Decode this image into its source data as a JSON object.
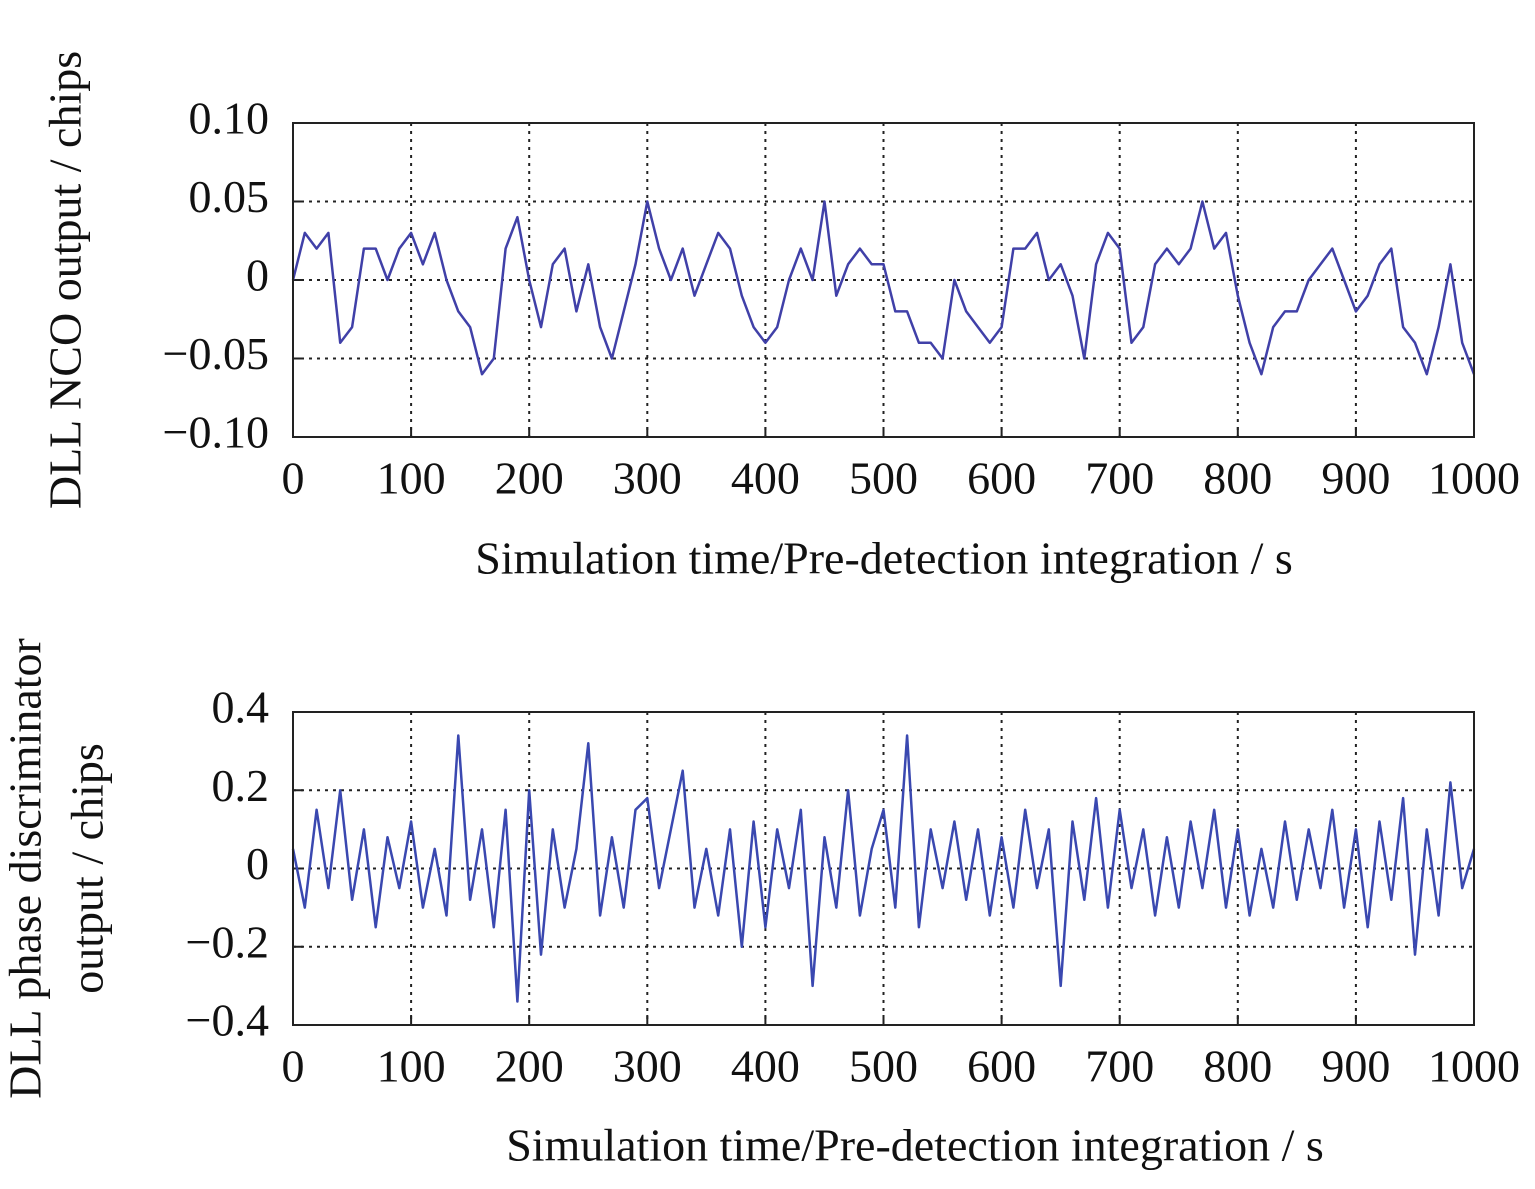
{
  "chart_data": [
    {
      "type": "line",
      "x_label": "Simulation time/Pre-detection integration / s",
      "y_label": [
        "DLL NCO output / chips"
      ],
      "xlim": [
        0,
        1000
      ],
      "xticks": [
        0,
        100,
        200,
        300,
        400,
        500,
        600,
        700,
        800,
        900,
        1000
      ],
      "ylim": [
        -0.1,
        0.1
      ],
      "yticks": [
        {
          "value": 0.1,
          "label": "0.10"
        },
        {
          "value": 0.05,
          "label": "0.05"
        },
        0,
        {
          "value": -0.05,
          "label": "−0.05"
        },
        {
          "value": -0.1,
          "label": "−0.10"
        }
      ],
      "grid": true,
      "x": [
        0,
        10,
        20,
        30,
        40,
        50,
        60,
        70,
        80,
        90,
        100,
        110,
        120,
        130,
        140,
        150,
        160,
        170,
        180,
        190,
        200,
        210,
        220,
        230,
        240,
        250,
        260,
        270,
        280,
        290,
        300,
        310,
        320,
        330,
        340,
        350,
        360,
        370,
        380,
        390,
        400,
        410,
        420,
        430,
        440,
        450,
        460,
        470,
        480,
        490,
        500,
        510,
        520,
        530,
        540,
        550,
        560,
        570,
        580,
        590,
        600,
        610,
        620,
        630,
        640,
        650,
        660,
        670,
        680,
        690,
        700,
        710,
        720,
        730,
        740,
        750,
        760,
        770,
        780,
        790,
        800,
        810,
        820,
        830,
        840,
        850,
        860,
        870,
        880,
        890,
        900,
        910,
        920,
        930,
        940,
        950,
        960,
        970,
        980,
        990,
        1000
      ],
      "series": [
        {
          "color": "#4040a8",
          "values": [
            0,
            0.03,
            0.02,
            0.03,
            -0.04,
            -0.03,
            0.02,
            0.02,
            0.0,
            0.02,
            0.03,
            0.01,
            0.03,
            0.0,
            -0.02,
            -0.03,
            -0.06,
            -0.05,
            0.02,
            0.04,
            0.0,
            -0.03,
            0.01,
            0.02,
            -0.02,
            0.01,
            -0.03,
            -0.05,
            -0.02,
            0.01,
            0.05,
            0.02,
            0.0,
            0.02,
            -0.01,
            0.01,
            0.03,
            0.02,
            -0.01,
            -0.03,
            -0.04,
            -0.03,
            0.0,
            0.02,
            0.0,
            0.05,
            -0.01,
            0.01,
            0.02,
            0.01,
            0.01,
            -0.02,
            -0.02,
            -0.04,
            -0.04,
            -0.05,
            0.0,
            -0.02,
            -0.03,
            -0.04,
            -0.03,
            0.02,
            0.02,
            0.03,
            0.0,
            0.01,
            -0.01,
            -0.05,
            0.01,
            0.03,
            0.02,
            -0.04,
            -0.03,
            0.01,
            0.02,
            0.01,
            0.02,
            0.05,
            0.02,
            0.03,
            -0.01,
            -0.04,
            -0.06,
            -0.03,
            -0.02,
            -0.02,
            0.0,
            0.01,
            0.02,
            0.0,
            -0.02,
            -0.01,
            0.01,
            0.02,
            -0.03,
            -0.04,
            -0.06,
            -0.03,
            0.01,
            -0.04,
            -0.06
          ]
        }
      ]
    },
    {
      "type": "line",
      "x_label": "Simulation time/Pre-detection integration / s",
      "y_label": [
        "DLL phase discriminator",
        "output / chips"
      ],
      "xlim": [
        0,
        1000
      ],
      "xticks": [
        0,
        100,
        200,
        300,
        400,
        500,
        600,
        700,
        800,
        900,
        1000
      ],
      "ylim": [
        -0.4,
        0.4
      ],
      "yticks": [
        0.4,
        0.2,
        0,
        {
          "value": -0.2,
          "label": "−0.2"
        },
        {
          "value": -0.4,
          "label": "−0.4"
        }
      ],
      "grid": true,
      "x": [
        0,
        10,
        20,
        30,
        40,
        50,
        60,
        70,
        80,
        90,
        100,
        110,
        120,
        130,
        140,
        150,
        160,
        170,
        180,
        190,
        200,
        210,
        220,
        230,
        240,
        250,
        260,
        270,
        280,
        290,
        300,
        310,
        320,
        330,
        340,
        350,
        360,
        370,
        380,
        390,
        400,
        410,
        420,
        430,
        440,
        450,
        460,
        470,
        480,
        490,
        500,
        510,
        520,
        530,
        540,
        550,
        560,
        570,
        580,
        590,
        600,
        610,
        620,
        630,
        640,
        650,
        660,
        670,
        680,
        690,
        700,
        710,
        720,
        730,
        740,
        750,
        760,
        770,
        780,
        790,
        800,
        810,
        820,
        830,
        840,
        850,
        860,
        870,
        880,
        890,
        900,
        910,
        920,
        930,
        940,
        950,
        960,
        970,
        980,
        990,
        1000
      ],
      "series": [
        {
          "color": "#3a48b0",
          "values": [
            0.05,
            -0.1,
            0.15,
            -0.05,
            0.2,
            -0.08,
            0.1,
            -0.15,
            0.08,
            -0.05,
            0.12,
            -0.1,
            0.05,
            -0.12,
            0.34,
            -0.08,
            0.1,
            -0.15,
            0.15,
            -0.34,
            0.2,
            -0.22,
            0.1,
            -0.1,
            0.05,
            0.32,
            -0.12,
            0.08,
            -0.1,
            0.15,
            0.18,
            -0.05,
            0.1,
            0.25,
            -0.1,
            0.05,
            -0.12,
            0.1,
            -0.2,
            0.12,
            -0.15,
            0.1,
            -0.05,
            0.15,
            -0.3,
            0.08,
            -0.1,
            0.2,
            -0.12,
            0.05,
            0.15,
            -0.1,
            0.34,
            -0.15,
            0.1,
            -0.05,
            0.12,
            -0.08,
            0.1,
            -0.12,
            0.08,
            -0.1,
            0.15,
            -0.05,
            0.1,
            -0.3,
            0.12,
            -0.08,
            0.18,
            -0.1,
            0.15,
            -0.05,
            0.1,
            -0.12,
            0.08,
            -0.1,
            0.12,
            -0.05,
            0.15,
            -0.1,
            0.1,
            -0.12,
            0.05,
            -0.1,
            0.12,
            -0.08,
            0.1,
            -0.05,
            0.15,
            -0.1,
            0.1,
            -0.15,
            0.12,
            -0.08,
            0.18,
            -0.22,
            0.1,
            -0.12,
            0.22,
            -0.05,
            0.05
          ]
        }
      ]
    }
  ]
}
